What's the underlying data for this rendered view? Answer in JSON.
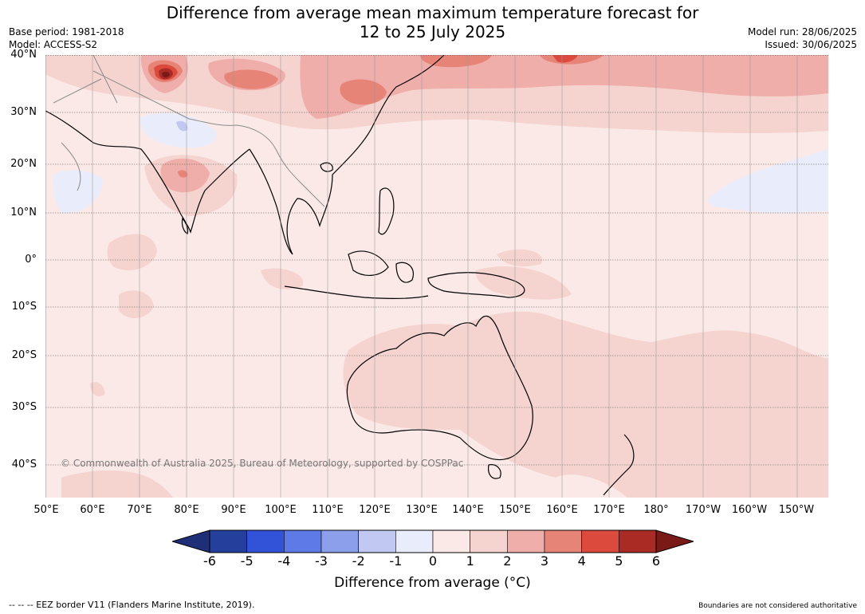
{
  "header": {
    "title_line1": "Difference from average mean maximum temperature forecast for",
    "title_line2": "12 to 25 July 2025",
    "base_period": "Base period: 1981-2018",
    "model": "Model: ACCESS-S2",
    "model_run": "Model run: 28/06/2025",
    "issued": "Issued: 30/06/2025"
  },
  "map": {
    "latitude_labels": [
      "40°N",
      "30°N",
      "20°N",
      "10°N",
      "0°",
      "10°S",
      "20°S",
      "30°S",
      "40°S"
    ],
    "longitude_labels": [
      "50°E",
      "60°E",
      "70°E",
      "80°E",
      "90°E",
      "100°E",
      "110°E",
      "120°E",
      "130°E",
      "140°E",
      "150°E",
      "160°E",
      "170°E",
      "180°",
      "170°W",
      "160°W",
      "150°W"
    ],
    "copyright": "© Commonwealth of Australia 2025, Bureau of Meteorology, supported by COSPPac"
  },
  "colorbar": {
    "ticks": [
      "-6",
      "-5",
      "-4",
      "-3",
      "-2",
      "-1",
      "0",
      "1",
      "2",
      "3",
      "4",
      "5",
      "6"
    ],
    "colors": [
      "#25409c",
      "#3252d8",
      "#5e7ae6",
      "#8c9fea",
      "#c1c9f3",
      "#e9ecfa",
      "#fbe9e7",
      "#f5d4d0",
      "#efaeaa",
      "#e78478",
      "#db4a3d",
      "#aa2a24"
    ],
    "under_color": "#1e2f78",
    "over_color": "#7a1a16",
    "label": "Difference from average (°C)"
  },
  "footer": {
    "eez_note": "--  --  -- EEZ border V11 (Flanders Marine Institute, 2019).",
    "disclaimer": "Boundaries are not considered authoritative"
  }
}
